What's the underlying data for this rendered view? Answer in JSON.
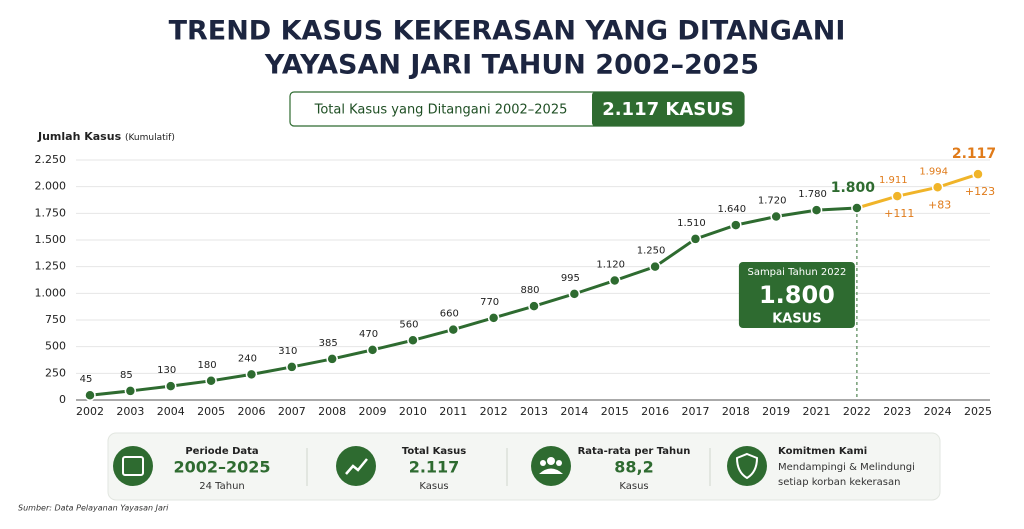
{
  "title": [
    "TREND KASUS KEKERASAN YANG DITANGANI",
    "YAYASAN JARI TAHUN 2002–2025"
  ],
  "summary": {
    "label": "Total Kasus yang Ditangani 2002–2025",
    "value": "2.117 KASUS"
  },
  "chart_data": {
    "type": "line",
    "y_label": "Jumlah Kasus",
    "y_label_note": "(Kumulatif)",
    "categories": [
      "2002",
      "2003",
      "2004",
      "2005",
      "2006",
      "2007",
      "2008",
      "2009",
      "2010",
      "2011",
      "2012",
      "2013",
      "2014",
      "2015",
      "2016",
      "2017",
      "2018",
      "2019",
      "2021",
      "2022",
      "2023",
      "2024",
      "2025"
    ],
    "series": [
      {
        "color": "#2e6b30",
        "values": [
          45,
          85,
          130,
          180,
          240,
          310,
          385,
          470,
          560,
          660,
          770,
          880,
          995,
          1120,
          1250,
          1510,
          1640,
          1720,
          1780,
          1800,
          null,
          null,
          null
        ],
        "value_labels": [
          "45",
          "85",
          "130",
          "180",
          "240",
          "310",
          "385",
          "470",
          "560",
          "660",
          "770",
          "880",
          "995",
          "1.120",
          "1.250",
          "1.510",
          "1.640",
          "1.720",
          "1.780",
          "1.800",
          null,
          null,
          null
        ]
      },
      {
        "color": "#f0b429",
        "label_color": "#e07b1a",
        "values": [
          null,
          null,
          null,
          null,
          null,
          null,
          null,
          null,
          null,
          null,
          null,
          null,
          null,
          null,
          null,
          null,
          null,
          null,
          null,
          null,
          1911,
          1994,
          2117
        ],
        "value_labels": [
          null,
          null,
          null,
          null,
          null,
          null,
          null,
          null,
          null,
          null,
          null,
          null,
          null,
          null,
          null,
          null,
          null,
          null,
          null,
          null,
          "1.911",
          "1.994",
          "2.117"
        ],
        "change_labels": [
          null,
          null,
          null,
          null,
          null,
          null,
          null,
          null,
          null,
          null,
          null,
          null,
          null,
          null,
          null,
          null,
          null,
          null,
          null,
          null,
          "+111",
          "+83",
          "+123"
        ]
      }
    ],
    "ylim": [
      0,
      2250
    ],
    "yticks": [
      0,
      250,
      500,
      750,
      {
        "value": 1000,
        "label": "1.000"
      },
      {
        "value": 1250,
        "label": "1.250"
      },
      {
        "value": 1500,
        "label": "1.500"
      },
      {
        "value": 1750,
        "label": "1.750"
      },
      {
        "value": 2000,
        "label": "2.000"
      },
      {
        "value": 2250,
        "label": "2.250"
      }
    ],
    "grid": true,
    "callout": {
      "title": "Sampai Tahun 2022",
      "value": "1.800",
      "unit": "KASUS"
    }
  },
  "stats": [
    {
      "title": "Periode Data",
      "value": "2002–2025",
      "sub": "24 Tahun"
    },
    {
      "title": "Total Kasus",
      "value": "2.117",
      "sub": "Kasus"
    },
    {
      "title": "Rata-rata per Tahun",
      "value": "88,2",
      "sub": "Kasus"
    },
    {
      "title": "Komitmen Kami",
      "lines": [
        "Mendampingi & Melindungi",
        "setiap korban kekerasan"
      ]
    }
  ],
  "source": "Sumber: Data Pelayanan Yayasan Jari"
}
